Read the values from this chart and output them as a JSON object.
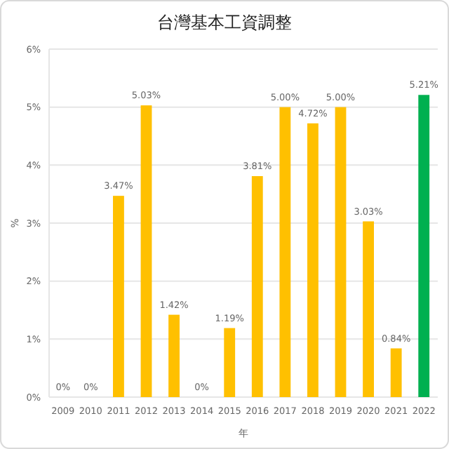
{
  "chart_data": {
    "type": "bar",
    "title": "台灣基本工資調整",
    "xlabel": "年",
    "ylabel": "%",
    "categories": [
      "2009",
      "2010",
      "2011",
      "2012",
      "2013",
      "2014",
      "2015",
      "2016",
      "2017",
      "2018",
      "2019",
      "2020",
      "2021",
      "2022"
    ],
    "values": [
      0,
      0,
      3.47,
      5.03,
      1.42,
      0,
      1.19,
      3.81,
      5.0,
      4.72,
      5.0,
      3.03,
      0.84,
      5.21
    ],
    "colors": [
      "#ffc000",
      "#ffc000",
      "#ffc000",
      "#ffc000",
      "#ffc000",
      "#ffc000",
      "#ffc000",
      "#ffc000",
      "#ffc000",
      "#ffc000",
      "#ffc000",
      "#ffc000",
      "#ffc000",
      "#00b050"
    ],
    "value_labels": [
      "0%",
      "0%",
      "3.47%",
      "5.03%",
      "1.42%",
      "0%",
      "1.19%",
      "3.81%",
      "5.00%",
      "4.72%",
      "5.00%",
      "3.03%",
      "0.84%",
      "5.21%"
    ],
    "ylim": [
      0,
      6
    ],
    "yticks": [
      {
        "value": 0,
        "label": "0%"
      },
      {
        "value": 1,
        "label": "1%"
      },
      {
        "value": 2,
        "label": "2%"
      },
      {
        "value": 3,
        "label": "3%"
      },
      {
        "value": 4,
        "label": "4%"
      },
      {
        "value": 5,
        "label": "5%"
      },
      {
        "value": 6,
        "label": "6%"
      }
    ],
    "grid": "y"
  }
}
